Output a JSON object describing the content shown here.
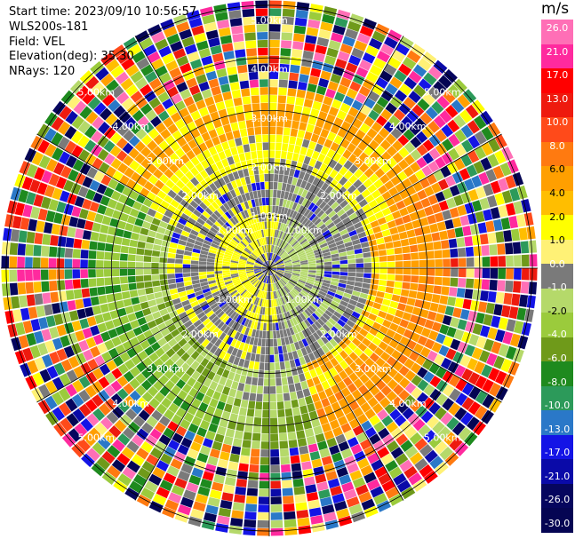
{
  "info": {
    "start_time": "Start time: 2023/09/10 10:56:57",
    "instrument": "WLS200s-181",
    "field": "Field: VEL",
    "elevation": "Elevation(deg): 35.30",
    "nrays": "NRays: 120"
  },
  "chart_data": {
    "type": "ppi",
    "field": "VEL",
    "n_rays": 120,
    "range_rings_km": [
      1.0,
      2.0,
      3.0,
      4.0,
      5.0
    ],
    "ring_labels": [
      "1.00km",
      "2.00km",
      "3.00km",
      "4.00km",
      "5.00km"
    ],
    "max_range_km": 5.1,
    "azimuth_lines_deg": [
      0,
      30,
      60,
      90,
      120,
      150
    ],
    "colorbar": {
      "unit": "m/s",
      "tick_labels": [
        "26.0",
        "21.0",
        "17.0",
        "13.0",
        "10.0",
        "8.0",
        "6.0",
        "4.0",
        "2.0",
        "1.0",
        "0.0",
        "-1.0",
        "-2.0",
        "-4.0",
        "-6.0",
        "-8.0",
        "-10.0",
        "-13.0",
        "-17.0",
        "-21.0",
        "-26.0",
        "-30.0"
      ],
      "colors": [
        "#ff6fb6",
        "#ff2a9e",
        "#ff0000",
        "#ee1a0e",
        "#ff4a1a",
        "#ff7a10",
        "#ff9f00",
        "#ffbe00",
        "#ffff00",
        "#fff176",
        "#7a7a7a",
        "#b5d96a",
        "#9bcb3c",
        "#6f9a1a",
        "#1e8a1e",
        "#2c9a5a",
        "#2a78c8",
        "#1414e6",
        "#0a0aa8",
        "#06065e",
        "#050553"
      ]
    }
  }
}
